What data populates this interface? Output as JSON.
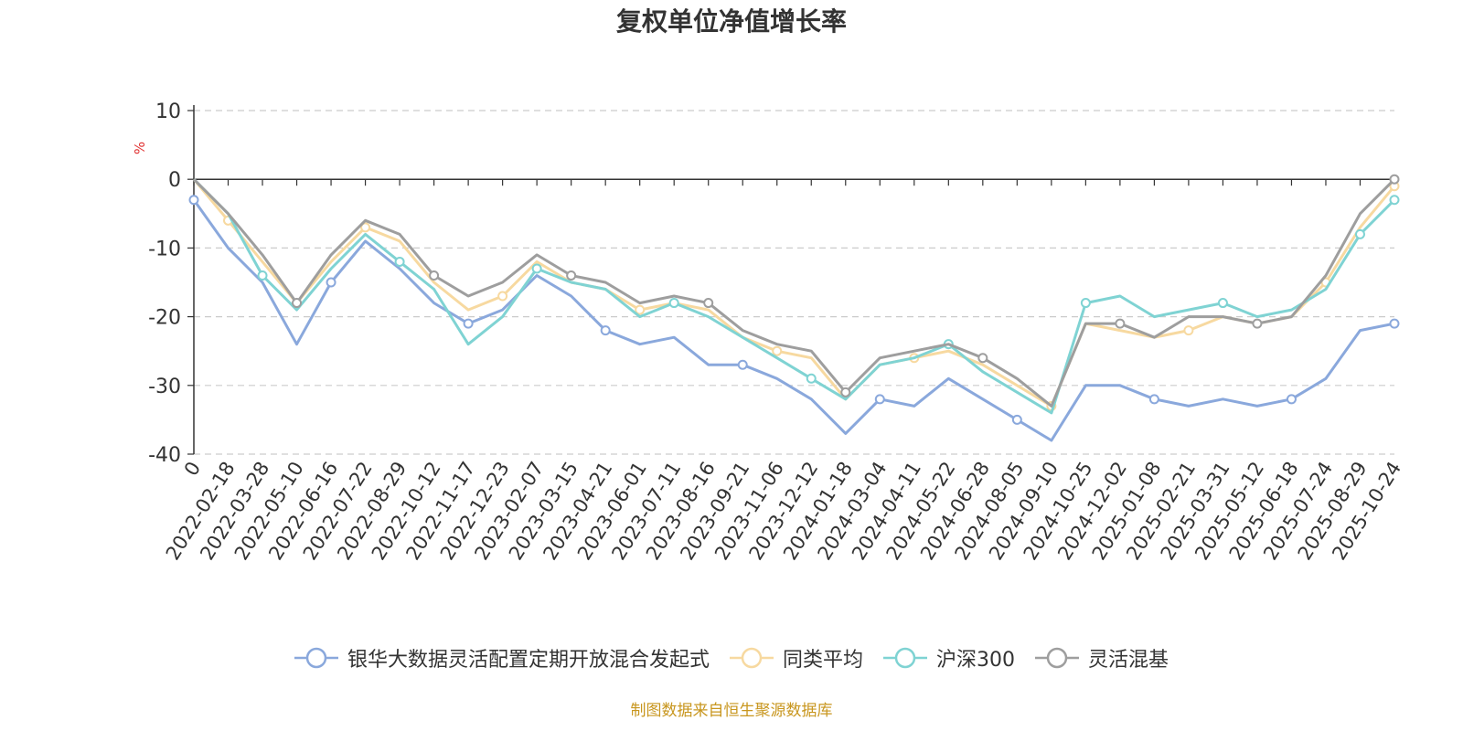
{
  "chart_data": {
    "type": "line",
    "title": "复权单位净值增长率",
    "ylabel": "%",
    "xlabel": "",
    "ylim": [
      -40,
      10
    ],
    "yticks": [
      10,
      0,
      -10,
      -20,
      -30,
      -40
    ],
    "grid": true,
    "legend_position": "bottom",
    "source": "制图数据来自恒生聚源数据库",
    "x_tick_labels": [
      "0",
      "2022-02-18",
      "2022-03-28",
      "2022-05-10",
      "2022-06-16",
      "2022-07-22",
      "2022-08-29",
      "2022-10-12",
      "2022-11-17",
      "2022-12-23",
      "2023-02-07",
      "2023-03-15",
      "2023-04-21",
      "2023-06-01",
      "2023-07-11",
      "2023-08-16",
      "2023-09-21",
      "2023-11-06",
      "2023-12-12",
      "2024-01-18",
      "2024-03-04",
      "2024-04-11",
      "2024-05-22",
      "2024-06-28",
      "2024-08-05",
      "2024-09-10",
      "2024-10-25",
      "2024-12-02",
      "2025-01-08",
      "2025-02-21",
      "2025-03-31",
      "2025-05-12",
      "2025-06-18",
      "2025-07-24",
      "2025-08-29",
      "2025-10-24"
    ],
    "x": [
      0,
      1,
      2,
      3,
      4,
      5,
      6,
      7,
      8,
      9,
      10,
      11,
      12,
      13,
      14,
      15,
      16,
      17,
      18,
      19,
      20,
      21,
      22,
      23,
      24,
      25,
      26,
      27,
      28,
      29,
      30,
      31,
      32,
      33,
      34,
      35
    ],
    "series": [
      {
        "name": "银华大数据灵活配置定期开放混合发起式",
        "color": "#8aa8dc",
        "values": [
          -3,
          -10,
          -15,
          -24,
          -15,
          -9,
          -13,
          -18,
          -21,
          -19,
          -14,
          -17,
          -22,
          -24,
          -23,
          -27,
          -27,
          -29,
          -32,
          -37,
          -32,
          -33,
          -29,
          -32,
          -35,
          -38,
          -30,
          -30,
          -32,
          -33,
          -32,
          -33,
          -32,
          -29,
          -22,
          -21
        ]
      },
      {
        "name": "同类平均",
        "color": "#f7d9a0",
        "values": [
          0,
          -6,
          -12,
          -18,
          -12,
          -7,
          -9,
          -15,
          -19,
          -17,
          -12,
          -15,
          -16,
          -19,
          -18,
          -19,
          -23,
          -25,
          -26,
          -32,
          -27,
          -26,
          -25,
          -27,
          -30,
          -33,
          -21,
          -22,
          -23,
          -22,
          -20,
          -21,
          -20,
          -15,
          -7,
          -1
        ]
      },
      {
        "name": "沪深300",
        "color": "#7fd3d3",
        "values": [
          0,
          -5,
          -14,
          -19,
          -13,
          -8,
          -12,
          -16,
          -24,
          -20,
          -13,
          -15,
          -16,
          -20,
          -18,
          -20,
          -23,
          -26,
          -29,
          -32,
          -27,
          -26,
          -24,
          -28,
          -31,
          -34,
          -18,
          -17,
          -20,
          -19,
          -18,
          -20,
          -19,
          -16,
          -8,
          -3
        ]
      },
      {
        "name": "灵活混基",
        "color": "#9e9e9e",
        "values": [
          0,
          -5,
          -11,
          -18,
          -11,
          -6,
          -8,
          -14,
          -17,
          -15,
          -11,
          -14,
          -15,
          -18,
          -17,
          -18,
          -22,
          -24,
          -25,
          -31,
          -26,
          -25,
          -24,
          -26,
          -29,
          -33,
          -21,
          -21,
          -23,
          -20,
          -20,
          -21,
          -20,
          -14,
          -5,
          0
        ]
      }
    ]
  }
}
